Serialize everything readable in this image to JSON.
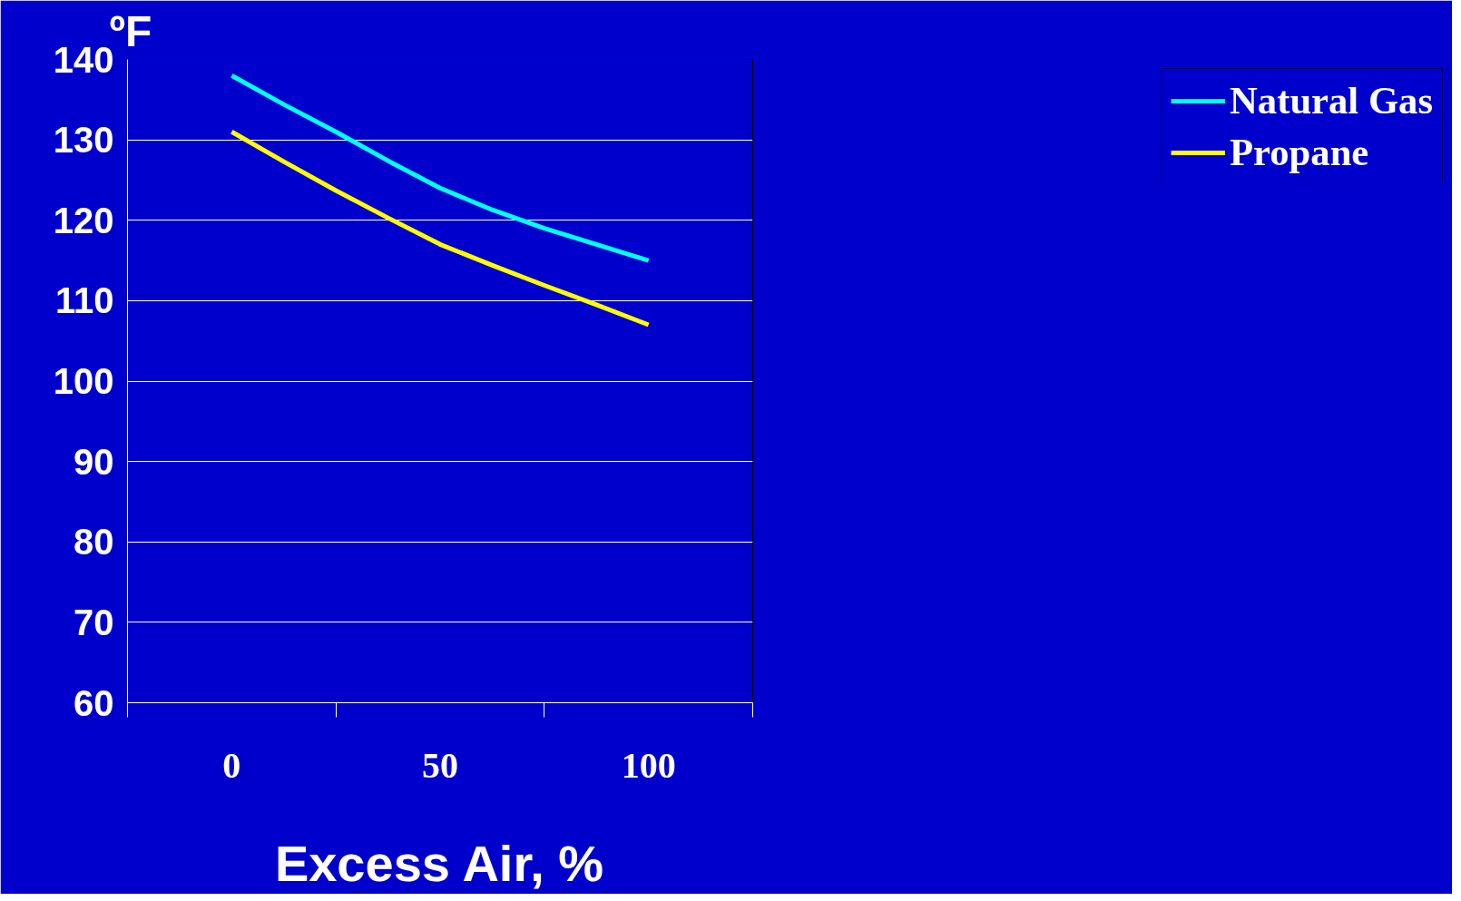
{
  "chart_data": {
    "type": "line",
    "xlabel": "Excess Air, %",
    "ylabel": "ºF",
    "x": [
      0,
      12.5,
      25,
      37.5,
      50,
      62.5,
      75,
      87.5,
      100
    ],
    "series": [
      {
        "name": "Natural Gas",
        "color": "#00ffff",
        "values": [
          138,
          134.4,
          131,
          127.4,
          124,
          121.3,
          119,
          117,
          115
        ]
      },
      {
        "name": "Propane",
        "color": "#ffff00",
        "values": [
          131,
          127.3,
          123.7,
          120.3,
          117,
          114.4,
          111.9,
          109.5,
          107
        ]
      }
    ],
    "xlim": [
      -25,
      125
    ],
    "xticks": [
      {
        "value": -25,
        "label": null
      },
      {
        "value": 0,
        "label": "0"
      },
      {
        "value": 25,
        "label": null
      },
      {
        "value": 50,
        "label": "50"
      },
      {
        "value": 75,
        "label": null
      },
      {
        "value": 100,
        "label": "100"
      },
      {
        "value": 125,
        "label": null
      }
    ],
    "ylim": [
      60,
      140
    ],
    "yticks": [
      60,
      70,
      80,
      90,
      100,
      110,
      120,
      130,
      140
    ],
    "grid": "y",
    "legend": "right",
    "marker": "none",
    "line_style": "solid"
  }
}
